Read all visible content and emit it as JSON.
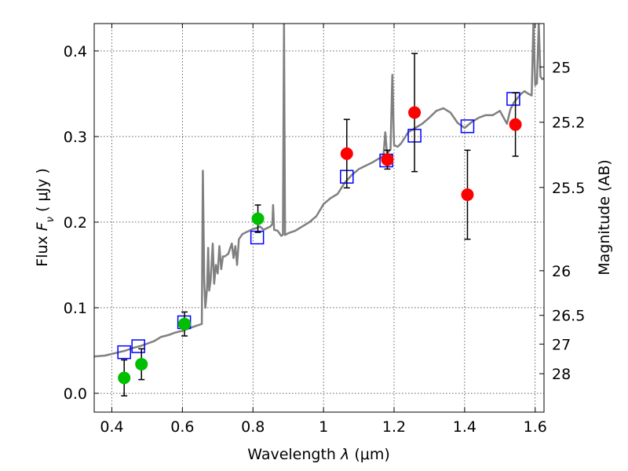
{
  "chart_data": {
    "type": "scatter",
    "xlabel_prefix": "Wavelength",
    "xlabel_var": "λ",
    "xlabel_unit": "(μm)",
    "ylabel_prefix": "Flux",
    "ylabel_var": "F",
    "ylabel_sub": "ν",
    "ylabel_unit": "( μJy )",
    "y2label": "Magnitude (AB)",
    "xlim": [
      0.35,
      1.625
    ],
    "ylim": [
      -0.022,
      0.432
    ],
    "xticks": [
      {
        "v": 0.4,
        "label": "0.4"
      },
      {
        "v": 0.6,
        "label": "0.6"
      },
      {
        "v": 0.8,
        "label": "0.8"
      },
      {
        "v": 1.0,
        "label": "1"
      },
      {
        "v": 1.2,
        "label": "1.2"
      },
      {
        "v": 1.4,
        "label": "1.4"
      },
      {
        "v": 1.6,
        "label": "1.6"
      }
    ],
    "yticks": [
      {
        "v": 0.0,
        "label": "0.0"
      },
      {
        "v": 0.1,
        "label": "0.1"
      },
      {
        "v": 0.2,
        "label": "0.2"
      },
      {
        "v": 0.3,
        "label": "0.3"
      },
      {
        "v": 0.4,
        "label": "0.4"
      }
    ],
    "mag_ticks": [
      {
        "v": 0.3813,
        "label": "25"
      },
      {
        "v": 0.3167,
        "label": "25.2"
      },
      {
        "v": 0.2405,
        "label": "25.5"
      },
      {
        "v": 0.1432,
        "label": "26"
      },
      {
        "v": 0.0911,
        "label": "26.5"
      },
      {
        "v": 0.0575,
        "label": "27"
      },
      {
        "v": 0.0229,
        "label": "28"
      }
    ],
    "grid": true,
    "series": [
      {
        "name": "model_spectrum",
        "style": "line",
        "color": "#808080",
        "points": [
          [
            0.35,
            0.043
          ],
          [
            0.38,
            0.044
          ],
          [
            0.4,
            0.046
          ],
          [
            0.42,
            0.048
          ],
          [
            0.44,
            0.05
          ],
          [
            0.46,
            0.053
          ],
          [
            0.48,
            0.055
          ],
          [
            0.5,
            0.058
          ],
          [
            0.52,
            0.061
          ],
          [
            0.54,
            0.066
          ],
          [
            0.56,
            0.068
          ],
          [
            0.58,
            0.071
          ],
          [
            0.6,
            0.073
          ],
          [
            0.62,
            0.076
          ],
          [
            0.64,
            0.079
          ],
          [
            0.655,
            0.081
          ],
          [
            0.658,
            0.26
          ],
          [
            0.662,
            0.13
          ],
          [
            0.665,
            0.1
          ],
          [
            0.67,
            0.123
          ],
          [
            0.673,
            0.17
          ],
          [
            0.676,
            0.12
          ],
          [
            0.68,
            0.132
          ],
          [
            0.686,
            0.175
          ],
          [
            0.69,
            0.128
          ],
          [
            0.695,
            0.15
          ],
          [
            0.7,
            0.14
          ],
          [
            0.705,
            0.172
          ],
          [
            0.71,
            0.145
          ],
          [
            0.715,
            0.16
          ],
          [
            0.72,
            0.16
          ],
          [
            0.73,
            0.163
          ],
          [
            0.74,
            0.175
          ],
          [
            0.745,
            0.158
          ],
          [
            0.75,
            0.172
          ],
          [
            0.755,
            0.15
          ],
          [
            0.76,
            0.18
          ],
          [
            0.77,
            0.186
          ],
          [
            0.78,
            0.188
          ],
          [
            0.79,
            0.19
          ],
          [
            0.8,
            0.192
          ],
          [
            0.81,
            0.193
          ],
          [
            0.82,
            0.195
          ],
          [
            0.83,
            0.191
          ],
          [
            0.84,
            0.193
          ],
          [
            0.85,
            0.195
          ],
          [
            0.855,
            0.198
          ],
          [
            0.857,
            0.22
          ],
          [
            0.86,
            0.191
          ],
          [
            0.87,
            0.19
          ],
          [
            0.88,
            0.184
          ],
          [
            0.885,
            0.185
          ],
          [
            0.888,
            0.432
          ],
          [
            0.891,
            0.185
          ],
          [
            0.9,
            0.187
          ],
          [
            0.92,
            0.19
          ],
          [
            0.94,
            0.195
          ],
          [
            0.96,
            0.2
          ],
          [
            0.98,
            0.207
          ],
          [
            1.0,
            0.221
          ],
          [
            1.02,
            0.228
          ],
          [
            1.04,
            0.233
          ],
          [
            1.06,
            0.246
          ],
          [
            1.08,
            0.255
          ],
          [
            1.1,
            0.262
          ],
          [
            1.12,
            0.266
          ],
          [
            1.14,
            0.27
          ],
          [
            1.16,
            0.275
          ],
          [
            1.17,
            0.278
          ],
          [
            1.175,
            0.305
          ],
          [
            1.18,
            0.28
          ],
          [
            1.19,
            0.285
          ],
          [
            1.195,
            0.372
          ],
          [
            1.2,
            0.29
          ],
          [
            1.21,
            0.288
          ],
          [
            1.22,
            0.292
          ],
          [
            1.24,
            0.305
          ],
          [
            1.26,
            0.31
          ],
          [
            1.28,
            0.315
          ],
          [
            1.3,
            0.322
          ],
          [
            1.32,
            0.33
          ],
          [
            1.34,
            0.333
          ],
          [
            1.36,
            0.328
          ],
          [
            1.38,
            0.316
          ],
          [
            1.4,
            0.31
          ],
          [
            1.42,
            0.317
          ],
          [
            1.44,
            0.322
          ],
          [
            1.46,
            0.325
          ],
          [
            1.48,
            0.325
          ],
          [
            1.5,
            0.33
          ],
          [
            1.52,
            0.315
          ],
          [
            1.53,
            0.332
          ],
          [
            1.54,
            0.34
          ],
          [
            1.55,
            0.345
          ],
          [
            1.56,
            0.35
          ],
          [
            1.57,
            0.353
          ],
          [
            1.58,
            0.35
          ],
          [
            1.59,
            0.348
          ],
          [
            1.595,
            0.432
          ],
          [
            1.6,
            0.36
          ],
          [
            1.605,
            0.362
          ],
          [
            1.61,
            0.432
          ],
          [
            1.615,
            0.37
          ],
          [
            1.62,
            0.367
          ],
          [
            1.625,
            0.368
          ]
        ]
      },
      {
        "name": "synthetic_photometry",
        "style": "open_square",
        "color": "#0000ff",
        "points": [
          {
            "x": 0.435,
            "y": 0.048
          },
          {
            "x": 0.475,
            "y": 0.055
          },
          {
            "x": 0.605,
            "y": 0.083
          },
          {
            "x": 0.812,
            "y": 0.182
          },
          {
            "x": 1.066,
            "y": 0.253
          },
          {
            "x": 1.178,
            "y": 0.272
          },
          {
            "x": 1.258,
            "y": 0.301
          },
          {
            "x": 1.408,
            "y": 0.312
          },
          {
            "x": 1.538,
            "y": 0.344
          }
        ]
      },
      {
        "name": "observed_optical",
        "style": "filled_circle",
        "color": "#00bf00",
        "points": [
          {
            "x": 0.435,
            "y": 0.018,
            "err": 0.021
          },
          {
            "x": 0.484,
            "y": 0.034,
            "err": 0.018
          },
          {
            "x": 0.606,
            "y": 0.081,
            "err": 0.014
          },
          {
            "x": 0.814,
            "y": 0.204,
            "err": 0.016
          }
        ]
      },
      {
        "name": "observed_nir",
        "style": "filled_circle",
        "color": "#ff0000",
        "points": [
          {
            "x": 1.066,
            "y": 0.28,
            "err": 0.04
          },
          {
            "x": 1.181,
            "y": 0.273,
            "err": 0.011
          },
          {
            "x": 1.258,
            "y": 0.328,
            "err": 0.069
          },
          {
            "x": 1.408,
            "y": 0.232,
            "err": 0.052
          },
          {
            "x": 1.544,
            "y": 0.314,
            "err": 0.037
          }
        ]
      }
    ]
  }
}
